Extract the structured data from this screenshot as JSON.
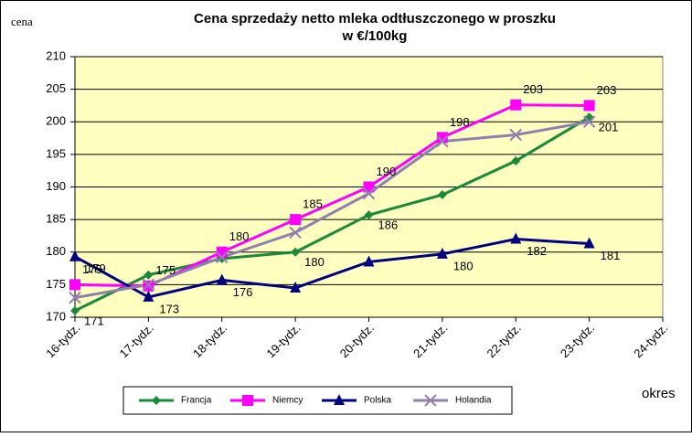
{
  "chart_data": {
    "type": "line",
    "title": [
      "Cena sprzedaży netto mleka odtłuszczonego w proszku",
      "w €/100kg"
    ],
    "y_label": "cena",
    "x_label": "okres",
    "categories": [
      "16-tydz.",
      "17-tydz.",
      "18-tydz.",
      "19-tydz.",
      "20-tydz.",
      "21-tydz.",
      "22-tydz.",
      "23-tydz.",
      "24-tydz."
    ],
    "ylim": [
      170,
      210
    ],
    "yticks": [
      170,
      175,
      180,
      185,
      190,
      195,
      200,
      205,
      210
    ],
    "grid": true,
    "series": [
      {
        "name": "Francja",
        "color": "#1a8a3a",
        "marker": "diamond",
        "values": [
          171,
          176.5,
          179,
          180,
          185.7,
          188.8,
          194,
          200.7,
          null
        ],
        "value_labels": [
          "171",
          null,
          null,
          "180",
          "186",
          null,
          null,
          "201",
          null
        ]
      },
      {
        "name": "Niemcy",
        "color": "#ff00ff",
        "marker": "square",
        "values": [
          175,
          174.8,
          180,
          185,
          190,
          197.6,
          202.6,
          202.5,
          null
        ],
        "value_labels": [
          "175",
          "175",
          "180",
          "185",
          "190",
          "198",
          "203",
          "203",
          null
        ]
      },
      {
        "name": "Polska",
        "color": "#000080",
        "marker": "triangle",
        "values": [
          179.3,
          173.1,
          175.7,
          174.5,
          178.5,
          179.7,
          182,
          181.3,
          null
        ],
        "value_labels": [
          "179",
          "173",
          "176",
          null,
          null,
          "180",
          "182",
          "181",
          null
        ]
      },
      {
        "name": "Holandia",
        "color": "#9080b0",
        "marker": "x",
        "values": [
          173,
          175,
          179.2,
          183,
          189,
          197,
          198,
          200,
          null
        ],
        "value_labels": [
          null,
          null,
          null,
          null,
          null,
          null,
          null,
          null,
          null
        ]
      }
    ]
  }
}
